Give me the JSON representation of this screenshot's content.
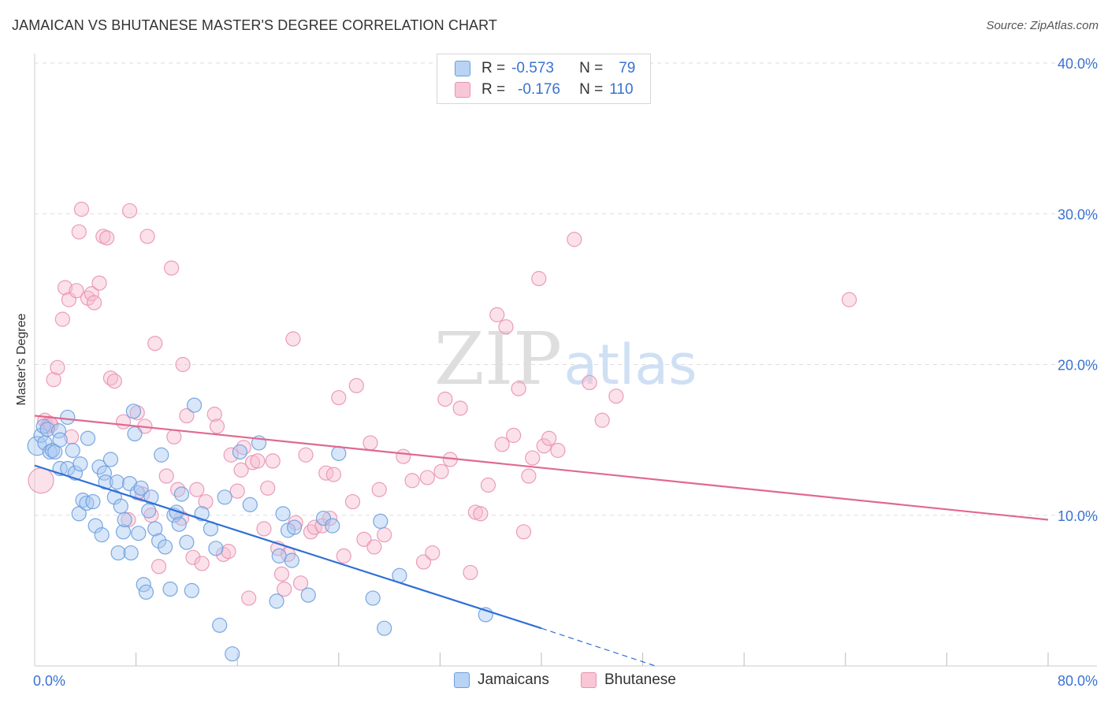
{
  "title": "JAMAICAN VS BHUTANESE MASTER'S DEGREE CORRELATION CHART",
  "source": "Source: ZipAtlas.com",
  "watermark": {
    "zip": "ZIP",
    "atlas": "atlas"
  },
  "legend": {
    "r_label": "R =",
    "n_label": "N =",
    "rows": [
      {
        "name": "Jamaicans",
        "r": "-0.573",
        "n": "79"
      },
      {
        "name": "Bhutanese",
        "r": "-0.176",
        "n": "110"
      }
    ]
  },
  "colors": {
    "blue_fill": "#a9c8f2",
    "blue_stroke": "#6b9fde",
    "blue_line": "#2f6fd6",
    "pink_fill": "#f7bcd0",
    "pink_stroke": "#e992b2",
    "pink_line": "#e0698f",
    "tick_text": "#3a72d2",
    "grid": "#dddddd"
  },
  "chart_data": {
    "type": "scatter",
    "title": "JAMAICAN VS BHUTANESE MASTER'S DEGREE CORRELATION CHART",
    "xlabel": "",
    "ylabel": "Master's Degree",
    "xlim": [
      0,
      80
    ],
    "ylim": [
      0,
      40
    ],
    "x_tick_labels": [
      "0.0%",
      "80.0%"
    ],
    "y_ticks": [
      10,
      20,
      30,
      40
    ],
    "y_tick_labels": [
      "10.0%",
      "20.0%",
      "30.0%",
      "40.0%"
    ],
    "x_minor_ticks": [
      8,
      16,
      24,
      32,
      40,
      48,
      56,
      64,
      72,
      80
    ],
    "grid": true,
    "series": [
      {
        "name": "Jamaicans",
        "r": -0.573,
        "n": 79,
        "trend": {
          "x0": 0,
          "y0": 13.3,
          "x1": 40,
          "y1": 2.5,
          "dash_to_x": 49,
          "dash_to_y": 0
        },
        "points": [
          [
            0.2,
            14.6
          ],
          [
            0.5,
            15.3
          ],
          [
            0.7,
            15.9
          ],
          [
            0.8,
            14.8
          ],
          [
            1.0,
            15.7
          ],
          [
            1.2,
            14.2
          ],
          [
            1.4,
            14.3
          ],
          [
            1.6,
            14.2
          ],
          [
            1.9,
            15.6
          ],
          [
            2.0,
            15.0
          ],
          [
            2.0,
            13.1
          ],
          [
            2.6,
            13.1
          ],
          [
            2.6,
            16.5
          ],
          [
            3.0,
            14.3
          ],
          [
            3.2,
            12.8
          ],
          [
            3.5,
            10.1
          ],
          [
            3.6,
            13.4
          ],
          [
            3.8,
            11.0
          ],
          [
            4.1,
            10.8
          ],
          [
            4.2,
            15.1
          ],
          [
            4.6,
            10.9
          ],
          [
            4.8,
            9.3
          ],
          [
            5.1,
            13.2
          ],
          [
            5.3,
            8.7
          ],
          [
            5.5,
            12.8
          ],
          [
            5.6,
            12.2
          ],
          [
            6.0,
            13.7
          ],
          [
            6.3,
            11.2
          ],
          [
            6.5,
            12.2
          ],
          [
            6.6,
            7.5
          ],
          [
            6.8,
            10.6
          ],
          [
            7.0,
            8.9
          ],
          [
            7.1,
            9.7
          ],
          [
            7.5,
            12.1
          ],
          [
            7.6,
            7.5
          ],
          [
            7.8,
            16.9
          ],
          [
            7.9,
            15.4
          ],
          [
            8.1,
            11.5
          ],
          [
            8.2,
            8.8
          ],
          [
            8.4,
            11.8
          ],
          [
            8.6,
            5.4
          ],
          [
            8.8,
            4.9
          ],
          [
            9.0,
            10.3
          ],
          [
            9.2,
            11.2
          ],
          [
            9.5,
            9.1
          ],
          [
            9.8,
            8.3
          ],
          [
            10.0,
            14.0
          ],
          [
            10.3,
            7.9
          ],
          [
            10.7,
            5.1
          ],
          [
            11.0,
            10.0
          ],
          [
            11.2,
            10.2
          ],
          [
            11.4,
            9.4
          ],
          [
            11.6,
            11.4
          ],
          [
            12.0,
            8.2
          ],
          [
            12.4,
            5.0
          ],
          [
            12.6,
            17.3
          ],
          [
            13.2,
            10.1
          ],
          [
            13.9,
            9.1
          ],
          [
            14.3,
            7.8
          ],
          [
            14.6,
            2.7
          ],
          [
            15.0,
            11.2
          ],
          [
            15.6,
            0.8
          ],
          [
            16.2,
            14.2
          ],
          [
            17.0,
            10.7
          ],
          [
            17.7,
            14.8
          ],
          [
            19.1,
            4.3
          ],
          [
            19.3,
            7.3
          ],
          [
            19.6,
            10.1
          ],
          [
            20.0,
            9.0
          ],
          [
            20.3,
            7.0
          ],
          [
            20.5,
            9.2
          ],
          [
            21.6,
            4.7
          ],
          [
            22.8,
            9.8
          ],
          [
            23.5,
            9.3
          ],
          [
            24.0,
            14.1
          ],
          [
            26.7,
            4.5
          ],
          [
            27.3,
            9.6
          ],
          [
            27.6,
            2.5
          ],
          [
            28.8,
            6.0
          ],
          [
            35.6,
            3.4
          ]
        ]
      },
      {
        "name": "Bhutanese",
        "r": -0.176,
        "n": 110,
        "trend": {
          "x0": 0,
          "y0": 16.6,
          "x1": 80,
          "y1": 9.7
        },
        "points": [
          [
            0.5,
            12.3
          ],
          [
            0.8,
            16.3
          ],
          [
            1.0,
            15.9
          ],
          [
            1.2,
            16.1
          ],
          [
            1.5,
            19.0
          ],
          [
            1.8,
            19.8
          ],
          [
            2.2,
            23.0
          ],
          [
            2.4,
            25.1
          ],
          [
            2.7,
            24.3
          ],
          [
            3.3,
            24.9
          ],
          [
            3.5,
            28.8
          ],
          [
            3.7,
            30.3
          ],
          [
            4.2,
            24.4
          ],
          [
            4.5,
            24.7
          ],
          [
            4.7,
            24.1
          ],
          [
            5.1,
            25.4
          ],
          [
            5.4,
            28.5
          ],
          [
            5.7,
            28.4
          ],
          [
            6.0,
            19.1
          ],
          [
            6.3,
            18.9
          ],
          [
            7.0,
            16.2
          ],
          [
            7.4,
            9.7
          ],
          [
            7.5,
            30.2
          ],
          [
            8.1,
            16.8
          ],
          [
            8.5,
            11.4
          ],
          [
            8.7,
            15.9
          ],
          [
            8.9,
            28.5
          ],
          [
            9.2,
            10.0
          ],
          [
            9.5,
            21.4
          ],
          [
            9.8,
            6.6
          ],
          [
            10.4,
            12.6
          ],
          [
            10.8,
            26.4
          ],
          [
            11.0,
            15.2
          ],
          [
            11.3,
            11.7
          ],
          [
            11.6,
            9.8
          ],
          [
            11.7,
            20.0
          ],
          [
            12.0,
            16.6
          ],
          [
            12.5,
            7.2
          ],
          [
            12.8,
            11.7
          ],
          [
            13.2,
            6.8
          ],
          [
            13.5,
            10.9
          ],
          [
            14.2,
            16.7
          ],
          [
            14.4,
            15.9
          ],
          [
            14.9,
            7.4
          ],
          [
            15.3,
            7.6
          ],
          [
            15.5,
            14.0
          ],
          [
            16.0,
            11.6
          ],
          [
            16.3,
            13.0
          ],
          [
            16.5,
            14.5
          ],
          [
            16.9,
            4.5
          ],
          [
            17.2,
            13.5
          ],
          [
            17.6,
            13.6
          ],
          [
            18.1,
            9.1
          ],
          [
            18.4,
            11.8
          ],
          [
            18.8,
            13.6
          ],
          [
            19.2,
            7.8
          ],
          [
            19.5,
            6.1
          ],
          [
            19.7,
            5.1
          ],
          [
            20.0,
            7.4
          ],
          [
            20.4,
            21.7
          ],
          [
            20.6,
            9.5
          ],
          [
            21.0,
            5.5
          ],
          [
            21.4,
            14.0
          ],
          [
            21.8,
            8.9
          ],
          [
            22.1,
            9.2
          ],
          [
            22.7,
            9.3
          ],
          [
            23.0,
            12.8
          ],
          [
            23.3,
            9.8
          ],
          [
            23.6,
            12.7
          ],
          [
            24.0,
            17.8
          ],
          [
            24.4,
            7.3
          ],
          [
            25.1,
            10.9
          ],
          [
            25.4,
            18.6
          ],
          [
            26.0,
            8.4
          ],
          [
            26.5,
            14.8
          ],
          [
            26.8,
            7.9
          ],
          [
            27.2,
            11.7
          ],
          [
            27.6,
            8.7
          ],
          [
            29.1,
            13.9
          ],
          [
            29.8,
            12.3
          ],
          [
            30.7,
            6.9
          ],
          [
            31.0,
            12.5
          ],
          [
            31.4,
            7.5
          ],
          [
            32.1,
            12.9
          ],
          [
            32.4,
            17.7
          ],
          [
            32.8,
            13.7
          ],
          [
            33.6,
            17.1
          ],
          [
            34.4,
            6.2
          ],
          [
            34.8,
            10.2
          ],
          [
            35.2,
            10.1
          ],
          [
            35.8,
            12.0
          ],
          [
            36.5,
            23.3
          ],
          [
            36.9,
            14.7
          ],
          [
            37.2,
            22.5
          ],
          [
            37.8,
            15.3
          ],
          [
            38.2,
            18.4
          ],
          [
            38.6,
            8.9
          ],
          [
            39.0,
            12.6
          ],
          [
            39.3,
            13.8
          ],
          [
            39.8,
            25.7
          ],
          [
            40.2,
            14.6
          ],
          [
            40.6,
            15.1
          ],
          [
            41.3,
            14.3
          ],
          [
            42.6,
            28.3
          ],
          [
            43.8,
            18.8
          ],
          [
            44.8,
            16.3
          ],
          [
            45.9,
            17.9
          ],
          [
            64.3,
            24.3
          ],
          [
            1.3,
            16.0
          ],
          [
            2.9,
            15.2
          ]
        ]
      }
    ]
  }
}
